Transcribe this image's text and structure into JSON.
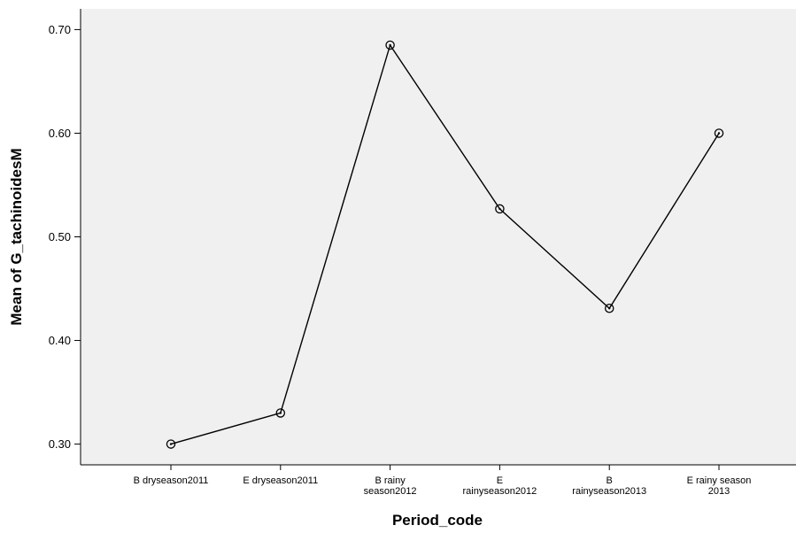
{
  "chart_data": {
    "type": "line",
    "xlabel": "Period_code",
    "ylabel": "Mean of G_tachinoidesM",
    "categories": [
      [
        "B dryseason2011"
      ],
      [
        "E dryseason2011"
      ],
      [
        "B rainy",
        "season2012"
      ],
      [
        "E",
        "rainyseason2012"
      ],
      [
        "B",
        "rainyseason2013"
      ],
      [
        "E rainy season",
        "2013"
      ]
    ],
    "values": [
      0.3,
      0.33,
      0.685,
      0.527,
      0.431,
      0.6
    ],
    "yticks": [
      "0.30",
      "0.40",
      "0.50",
      "0.60",
      "0.70"
    ],
    "ylim": [
      0.28,
      0.72
    ],
    "grid": false,
    "marker": "open-circle",
    "colors": {
      "plot_bg": "#f0f0f0",
      "line": "#000000",
      "axis": "#000000"
    }
  }
}
